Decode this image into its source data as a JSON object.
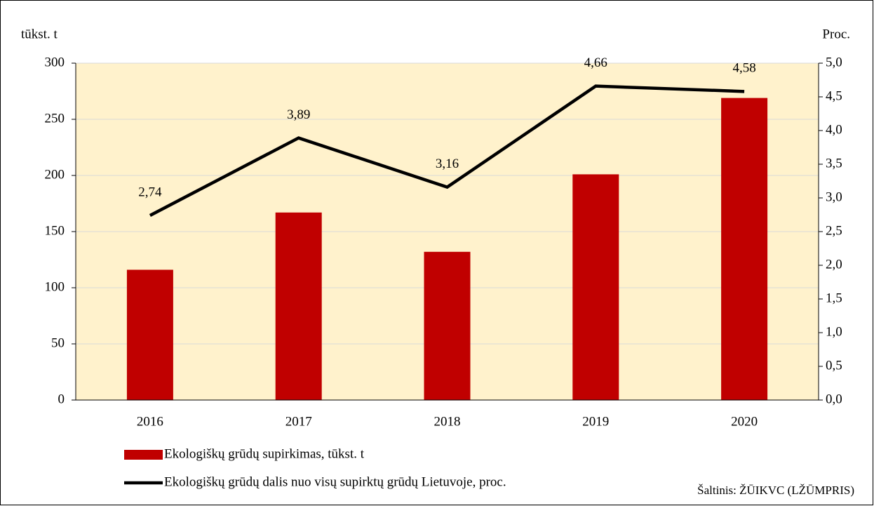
{
  "chart_data": {
    "type": "bar_line",
    "y_label": "tūkst. t",
    "y2_label": "Proc.",
    "categories": [
      "2016",
      "2017",
      "2018",
      "2019",
      "2020"
    ],
    "series": [
      {
        "name": "Ekologiškų grūdų supirkimas, tūkst. t",
        "type": "bar",
        "color": "#c00000",
        "values": [
          116,
          167,
          132,
          201,
          269
        ]
      },
      {
        "name": "Ekologiškų grūdų dalis nuo visų supirktų grūdų Lietuvoje, proc.",
        "type": "line",
        "axis": "y2",
        "color": "#000000",
        "values": [
          2.74,
          3.89,
          3.16,
          4.66,
          4.58
        ],
        "value_labels": [
          "2,74",
          "3,89",
          "3,16",
          "4,66",
          "4,58"
        ]
      }
    ],
    "ylim": [
      0,
      300
    ],
    "yticks": [
      0,
      50,
      100,
      150,
      200,
      250,
      300
    ],
    "y2lim": [
      0,
      5
    ],
    "y2ticks": [
      {
        "value": 0,
        "label": "0,0"
      },
      {
        "value": 0.5,
        "label": "0,5"
      },
      {
        "value": 1,
        "label": "1,0"
      },
      {
        "value": 1.5,
        "label": "1,5"
      },
      {
        "value": 2,
        "label": "2,0"
      },
      {
        "value": 2.5,
        "label": "2,5"
      },
      {
        "value": 3,
        "label": "3,0"
      },
      {
        "value": 3.5,
        "label": "3,5"
      },
      {
        "value": 4,
        "label": "4,0"
      },
      {
        "value": 4.5,
        "label": "4,5"
      },
      {
        "value": 5,
        "label": "5,0"
      }
    ],
    "grid": true,
    "plot_background": "#fff2cc",
    "source": "Šaltinis: ŽŪIKVC (LŽŪMPRIS)"
  }
}
